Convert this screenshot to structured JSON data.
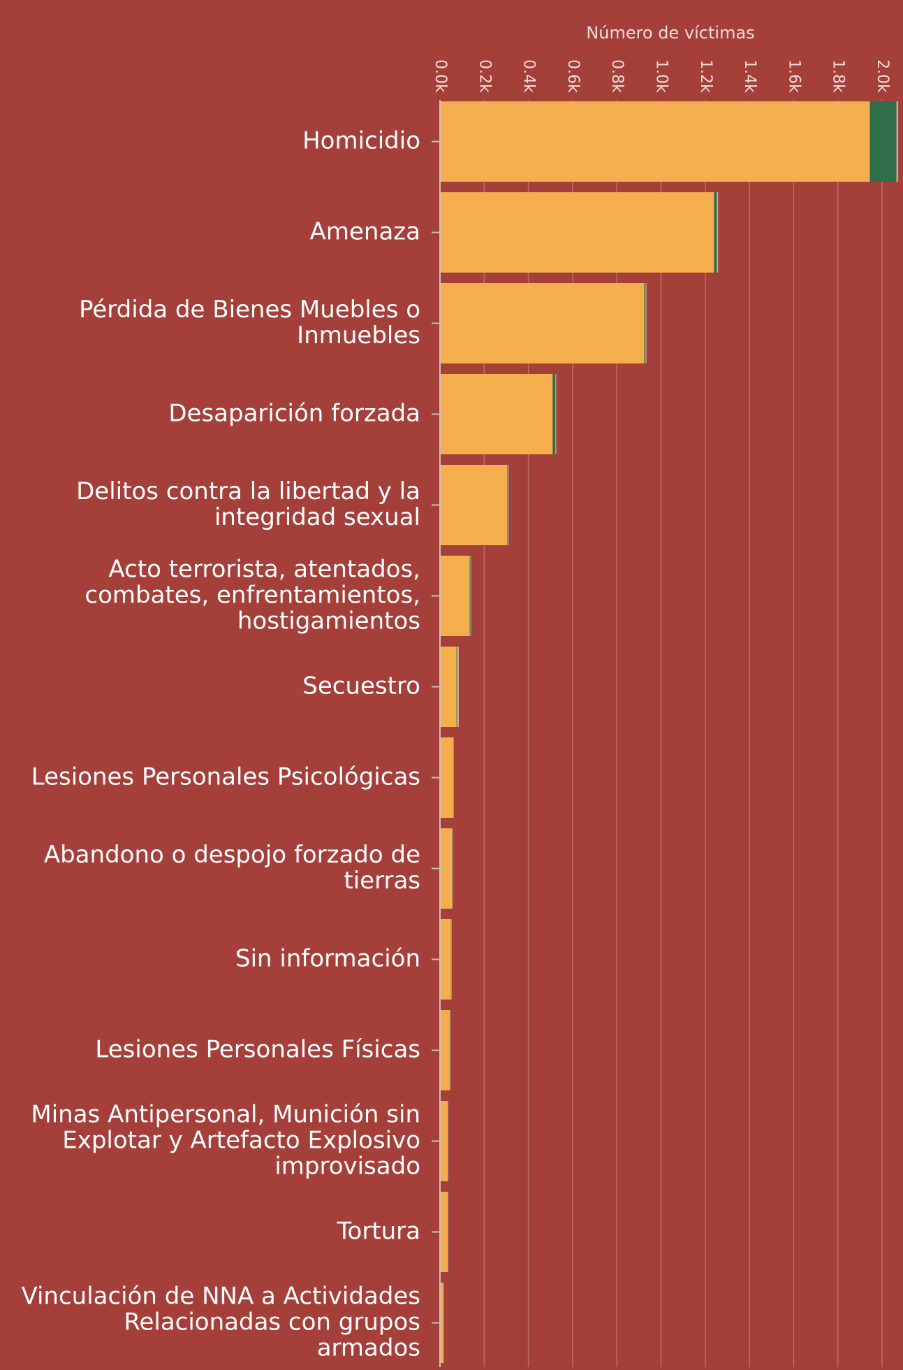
{
  "chart_data": {
    "type": "bar",
    "orientation": "horizontal",
    "stacked": true,
    "xlabel": "Número de víctimas",
    "xlim": [
      0,
      2060
    ],
    "ticks": [
      {
        "value": 0,
        "label": "0.0k"
      },
      {
        "value": 200,
        "label": "0.2k"
      },
      {
        "value": 400,
        "label": "0.4k"
      },
      {
        "value": 600,
        "label": "0.6k"
      },
      {
        "value": 800,
        "label": "0.8k"
      },
      {
        "value": 1000,
        "label": "1.0k"
      },
      {
        "value": 1200,
        "label": "1.2k"
      },
      {
        "value": 1400,
        "label": "1.4k"
      },
      {
        "value": 1600,
        "label": "1.6k"
      },
      {
        "value": 1800,
        "label": "1.8k"
      },
      {
        "value": 2000,
        "label": "2.0k"
      }
    ],
    "grid": true,
    "categories": [
      "Homicidio",
      "Amenaza",
      "Pérdida de Bienes Muebles o Inmuebles",
      "Desaparición forzada",
      "Delitos contra la libertad y la integridad sexual",
      "Acto terrorista, atentados, combates, enfrentamientos, hostigamientos",
      "Secuestro",
      "Lesiones Personales Psicológicas",
      "Abandono o despojo forzado de tierras",
      "Sin información",
      "Lesiones Personales Físicas",
      "Minas Antipersonal, Munición sin Explotar y Artefacto Explosivo improvisado",
      "Tortura",
      "Vinculación de NNA a Actividades Relacionadas con grupos armados"
    ],
    "category_lines": [
      [
        "Homicidio"
      ],
      [
        "Amenaza"
      ],
      [
        "Pérdida de Bienes Muebles o",
        "Inmuebles"
      ],
      [
        "Desaparición forzada"
      ],
      [
        "Delitos contra la libertad y la",
        "integridad sexual"
      ],
      [
        "Acto terrorista, atentados,",
        "combates, enfrentamientos,",
        "hostigamientos"
      ],
      [
        "Secuestro"
      ],
      [
        "Lesiones Personales Psicológicas"
      ],
      [
        "Abandono o despojo forzado de",
        "tierras"
      ],
      [
        "Sin información"
      ],
      [
        "Lesiones Personales Físicas"
      ],
      [
        "Minas Antipersonal, Munición sin",
        "Explotar y Artefacto Explosivo",
        "improvisado"
      ],
      [
        "Tortura"
      ],
      [
        "Vinculación de NNA a Actividades",
        "Relacionadas con grupos",
        "armados"
      ]
    ],
    "series": [
      {
        "color": "#f4ae4d",
        "values": [
          1945,
          1240,
          925,
          510,
          305,
          135,
          75,
          60,
          55,
          50,
          45,
          35,
          35,
          15
        ]
      },
      {
        "color": "#2f6e48",
        "values": [
          120,
          12,
          5,
          12,
          3,
          3,
          2,
          1,
          1,
          1,
          1,
          1,
          1,
          1
        ]
      },
      {
        "color": "#b9b3a7",
        "values": [
          8,
          6,
          4,
          4,
          3,
          3,
          8,
          2,
          2,
          2,
          2,
          2,
          2,
          2
        ]
      }
    ]
  }
}
